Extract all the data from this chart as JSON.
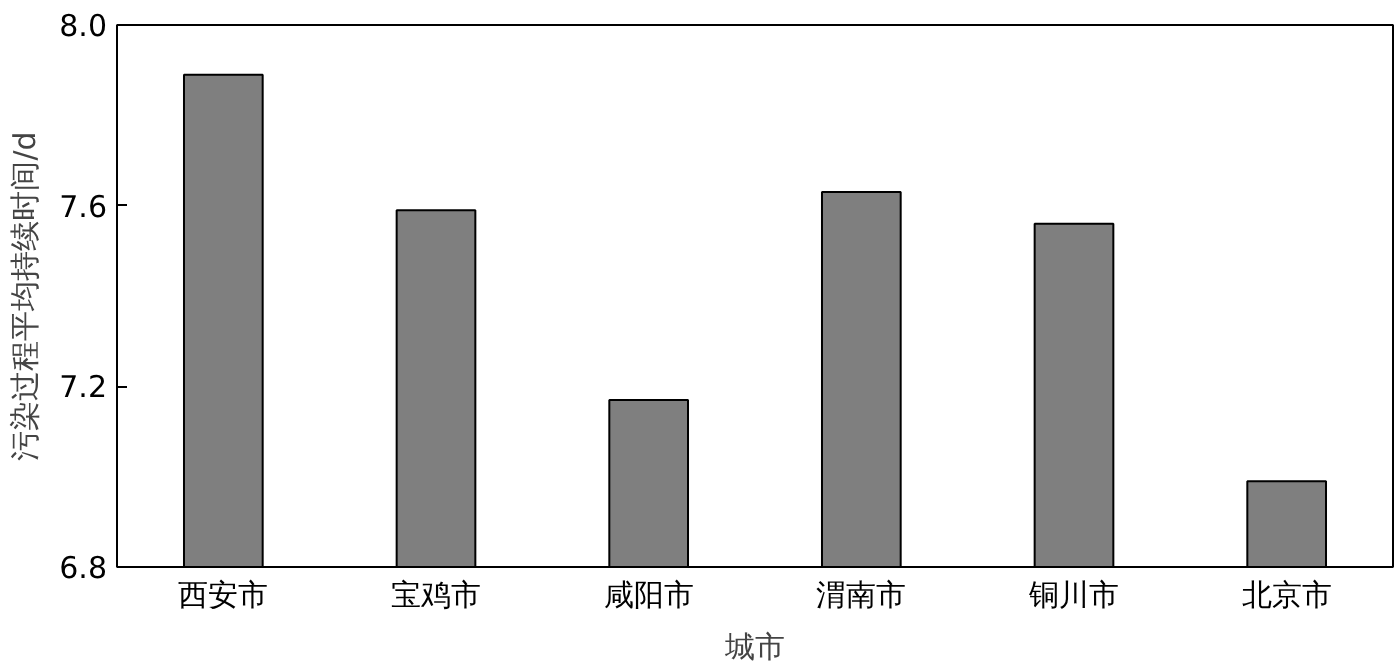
{
  "chart_data": {
    "type": "bar",
    "xlabel": "城市",
    "ylabel": "污染过程平均持续时间/d",
    "categories": [
      "西安市",
      "宝鸡市",
      "咸阳市",
      "渭南市",
      "铜川市",
      "北京市"
    ],
    "values": [
      7.89,
      7.59,
      7.17,
      7.63,
      7.56,
      6.99
    ],
    "color": "#7f7f7f",
    "ylim": [
      6.8,
      8.0
    ],
    "yticks": [
      {
        "value": 6.8,
        "label": "6.8"
      },
      {
        "value": 7.2,
        "label": "7.2"
      },
      {
        "value": 7.6,
        "label": "7.6"
      },
      {
        "value": 8.0,
        "label": "8.0"
      }
    ],
    "grid": false
  }
}
